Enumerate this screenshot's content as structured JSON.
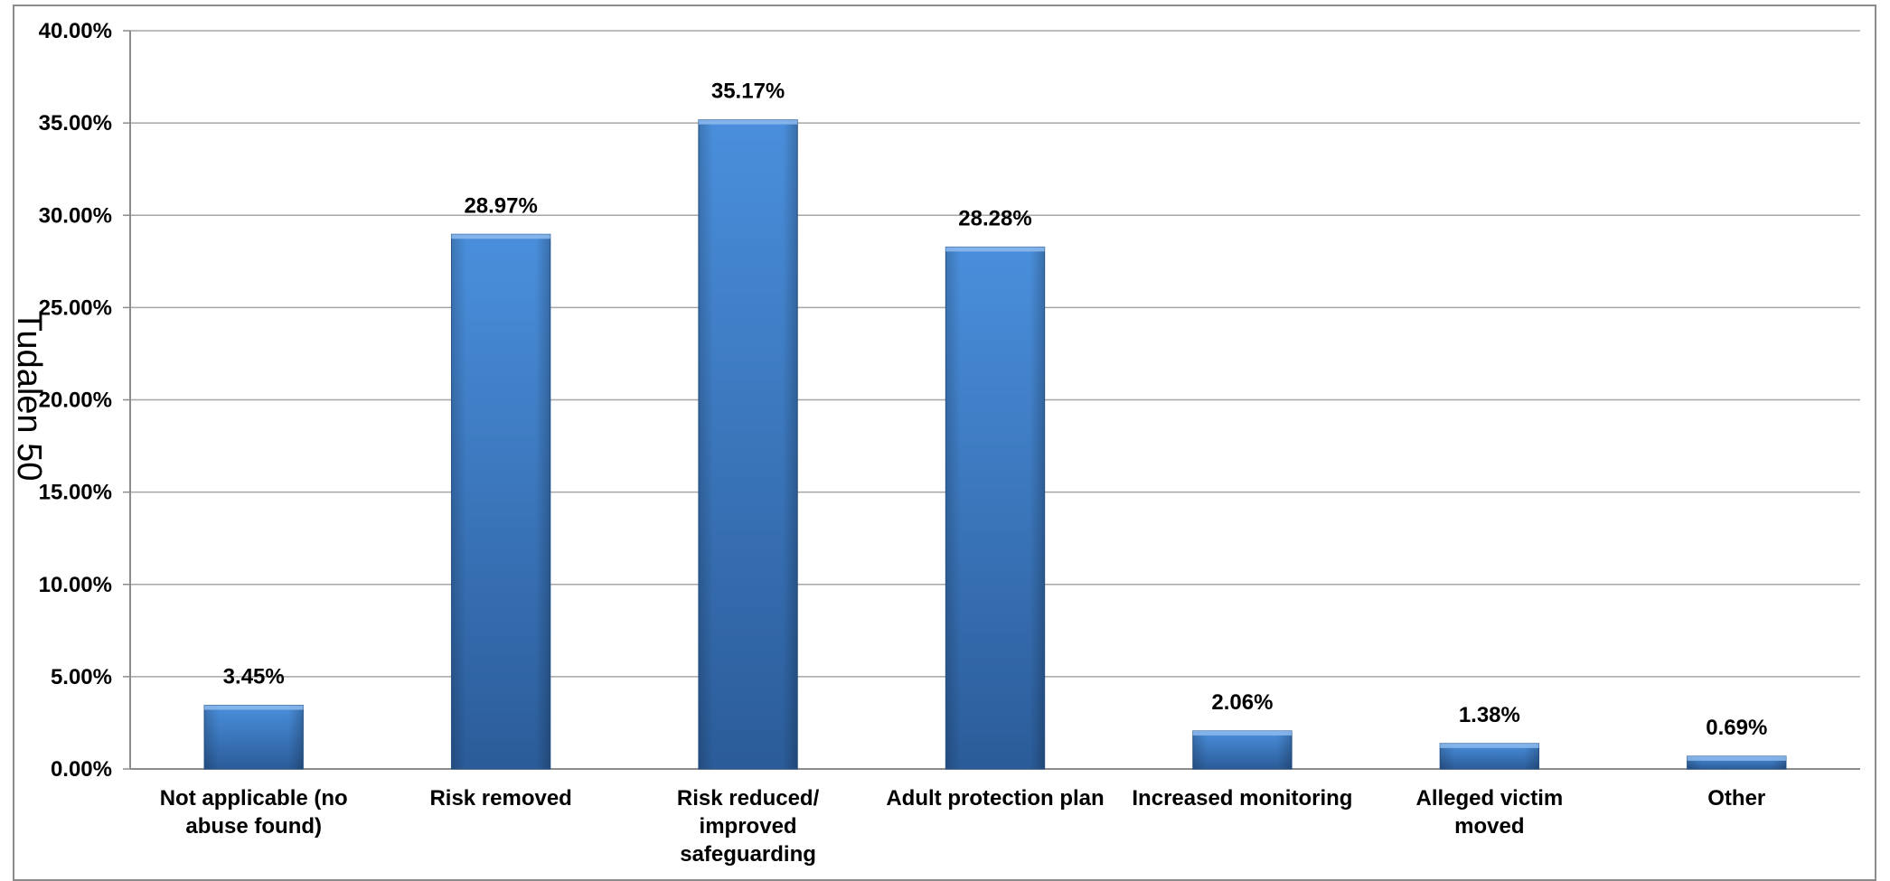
{
  "chart_data": {
    "type": "bar",
    "title": "",
    "xlabel": "",
    "ylabel": "Tudalen 50",
    "categories": [
      "Not applicable (no abuse found)",
      "Risk removed",
      "Risk reduced/ improved safeguarding",
      "Adult protection plan",
      "Increased monitoring",
      "Alleged victim moved",
      "Other"
    ],
    "category_lines": [
      [
        "Not applicable (no",
        "abuse found)"
      ],
      [
        "Risk removed"
      ],
      [
        "Risk reduced/",
        "improved",
        "safeguarding"
      ],
      [
        "Adult protection plan"
      ],
      [
        "Increased monitoring"
      ],
      [
        "Alleged victim",
        "moved"
      ],
      [
        "Other"
      ]
    ],
    "values": [
      3.45,
      28.97,
      35.17,
      28.28,
      2.06,
      1.38,
      0.69
    ],
    "data_labels": [
      "3.45%",
      "28.97%",
      "35.17%",
      "28.28%",
      "2.06%",
      "1.38%",
      "0.69%"
    ],
    "ylim": [
      0,
      40
    ],
    "yticks": [
      0,
      5,
      10,
      15,
      20,
      25,
      30,
      35,
      40
    ],
    "ytick_labels": [
      "0.00%",
      "5.00%",
      "10.00%",
      "15.00%",
      "20.00%",
      "25.00%",
      "30.00%",
      "35.00%",
      "40.00%"
    ],
    "grid": true,
    "legend": "none",
    "colors": {
      "bar_light": "#4A8FDC",
      "bar_dark": "#2B5C99",
      "grid": "#A6A6A6",
      "axis": "#8C8C8C"
    }
  }
}
